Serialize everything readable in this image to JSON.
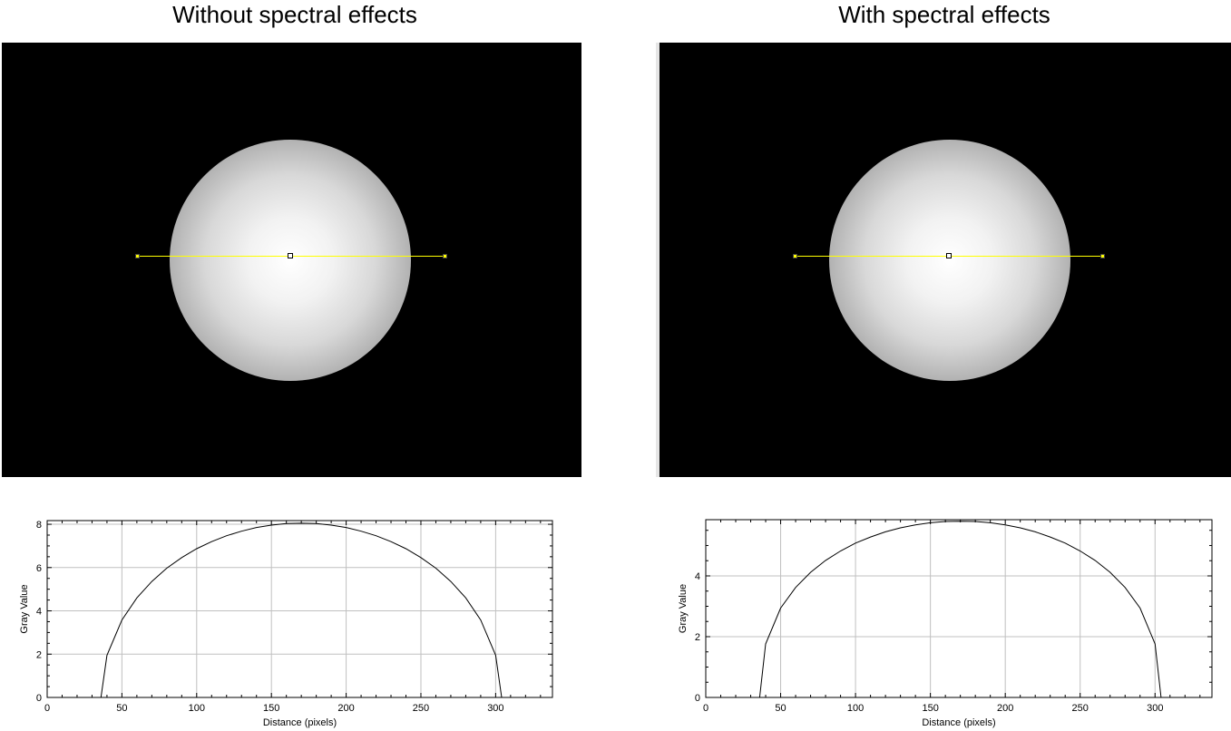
{
  "panels": [
    {
      "title": "Without spectral effects"
    },
    {
      "title": "With spectral effects"
    }
  ],
  "colors": {
    "profile_line": "#ffff00",
    "grid": "#c0c0c0",
    "curve": "#000000"
  },
  "chart_data": [
    {
      "type": "line",
      "title": "",
      "xlabel": "Distance (pixels)",
      "ylabel": "Gray Value",
      "xlim": [
        0,
        338
      ],
      "ylim": [
        0,
        8.17
      ],
      "xticks": [
        0,
        50,
        100,
        150,
        200,
        250,
        300
      ],
      "yticks": [
        0,
        2,
        4,
        6,
        8
      ],
      "grid": true,
      "x": [
        0,
        36,
        40,
        50,
        60,
        70,
        80,
        90,
        100,
        110,
        120,
        130,
        140,
        150,
        160,
        170,
        180,
        190,
        200,
        210,
        220,
        230,
        240,
        250,
        260,
        270,
        280,
        290,
        300,
        304,
        338
      ],
      "y": [
        0,
        0,
        1.95,
        3.58,
        4.6,
        5.36,
        5.97,
        6.46,
        6.87,
        7.2,
        7.47,
        7.68,
        7.85,
        7.96,
        8.03,
        8.05,
        8.03,
        7.96,
        7.85,
        7.68,
        7.47,
        7.2,
        6.87,
        6.46,
        5.97,
        5.36,
        4.6,
        3.58,
        1.95,
        0,
        0
      ]
    },
    {
      "type": "line",
      "title": "",
      "xlabel": "Distance (pixels)",
      "ylabel": "Gray Value",
      "xlim": [
        0,
        338
      ],
      "ylim": [
        0,
        5.85
      ],
      "xticks": [
        0,
        50,
        100,
        150,
        200,
        250,
        300
      ],
      "yticks": [
        0,
        2,
        4
      ],
      "grid": true,
      "x": [
        0,
        36,
        40,
        50,
        60,
        70,
        80,
        90,
        100,
        110,
        120,
        130,
        140,
        150,
        160,
        170,
        180,
        190,
        200,
        210,
        220,
        230,
        240,
        250,
        260,
        270,
        280,
        290,
        300,
        304,
        338
      ],
      "y": [
        0,
        0,
        1.76,
        2.94,
        3.62,
        4.12,
        4.51,
        4.82,
        5.08,
        5.28,
        5.45,
        5.58,
        5.68,
        5.75,
        5.79,
        5.8,
        5.79,
        5.75,
        5.68,
        5.58,
        5.45,
        5.28,
        5.08,
        4.82,
        4.51,
        4.12,
        3.62,
        2.94,
        1.76,
        0,
        0
      ]
    }
  ]
}
